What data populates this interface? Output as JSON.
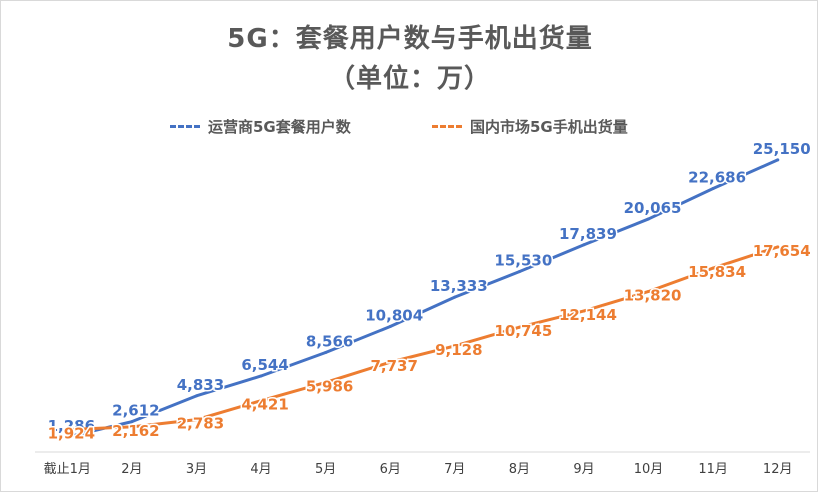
{
  "chart_data": {
    "type": "line",
    "title": "5G：套餐用户数与手机出货量",
    "subtitle": "（单位：万）",
    "categories": [
      "截止1月",
      "2月",
      "3月",
      "4月",
      "5月",
      "6月",
      "7月",
      "8月",
      "9月",
      "10月",
      "11月",
      "12月"
    ],
    "series": [
      {
        "name": "运营商5G套餐用户数",
        "color": "#4472c4",
        "values": [
          1286,
          2612,
          4833,
          6544,
          8566,
          10804,
          13333,
          15530,
          17839,
          20065,
          22686,
          25150
        ],
        "labels": [
          "1,286",
          "2,612",
          "4,833",
          "6,544",
          "8,566",
          "10,804",
          "13,333",
          "15,530",
          "17,839",
          "20,065",
          "22,686",
          "25,150"
        ]
      },
      {
        "name": "国内市场5G手机出货量",
        "color": "#ed7d31",
        "values": [
          1924,
          2162,
          2783,
          4421,
          5986,
          7737,
          9128,
          10745,
          12144,
          13820,
          15834,
          17654
        ],
        "labels": [
          "1,924",
          "2,162",
          "2,783",
          "4,421",
          "5,986",
          "7,737",
          "9,128",
          "10,745",
          "12,144",
          "13,820",
          "15,834",
          "17,654"
        ]
      }
    ],
    "ylim": [
      0,
      26000
    ],
    "grid": false,
    "legend_position": "top"
  }
}
